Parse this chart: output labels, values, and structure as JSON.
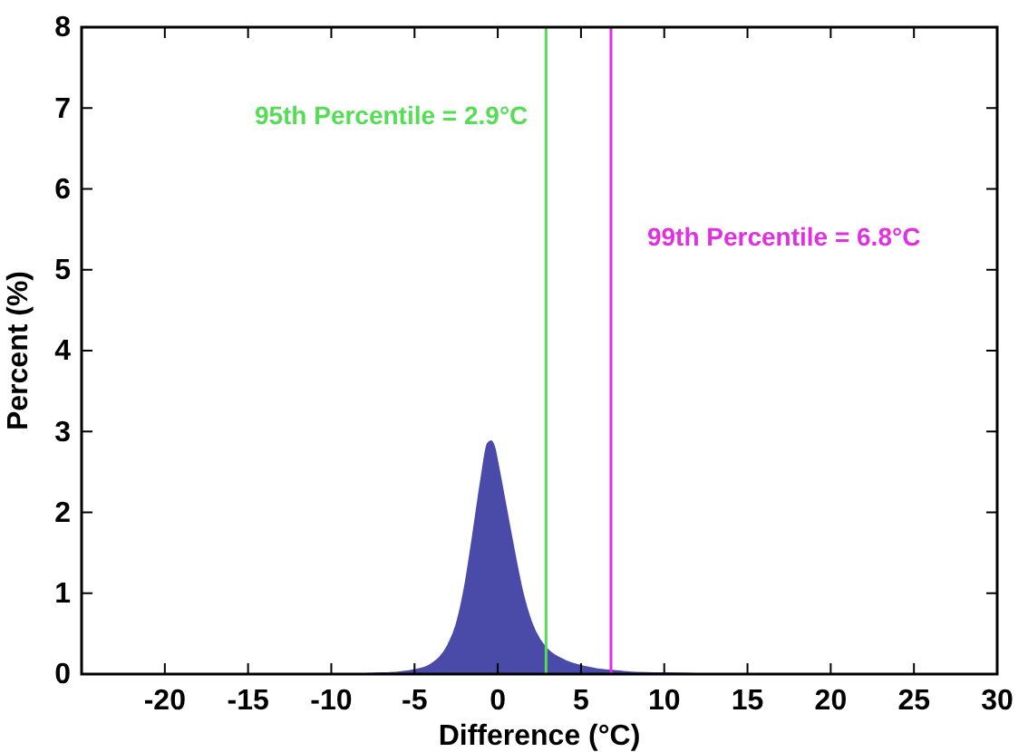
{
  "chart_data": {
    "type": "area",
    "xlabel": "Difference (°C)",
    "ylabel": "Percent (%)",
    "x": [
      -8,
      -7,
      -6,
      -5,
      -4,
      -3,
      -2.5,
      -2,
      -1.5,
      -1,
      -0.6,
      -0.4,
      -0.2,
      0,
      0.5,
      1,
      1.5,
      2,
      2.5,
      3,
      4,
      5,
      6,
      7,
      8,
      10,
      12
    ],
    "series": [
      {
        "color": "#4a4ba8",
        "values": [
          0,
          0.01,
          0.02,
          0.05,
          0.12,
          0.35,
          0.6,
          1.05,
          1.7,
          2.4,
          2.85,
          2.88,
          2.8,
          2.6,
          2.05,
          1.5,
          1.0,
          0.65,
          0.43,
          0.3,
          0.17,
          0.1,
          0.06,
          0.04,
          0.02,
          0.01,
          0
        ]
      }
    ],
    "xlim": [
      -25,
      30
    ],
    "xticks": [
      -20,
      -15,
      -10,
      -5,
      0,
      5,
      10,
      15,
      20,
      25,
      30
    ],
    "ylim": [
      0,
      8
    ],
    "yticks": [
      0,
      1,
      2,
      3,
      4,
      5,
      6,
      7,
      8
    ],
    "grid": false,
    "ref_lines": [
      {
        "axis": "x",
        "value": 2.9,
        "label": "95th Percentile = 2.9°C",
        "color": "#55dd55"
      },
      {
        "axis": "x",
        "value": 6.8,
        "label": "99th Percentile = 6.8°C",
        "color": "#e030e0"
      }
    ]
  }
}
